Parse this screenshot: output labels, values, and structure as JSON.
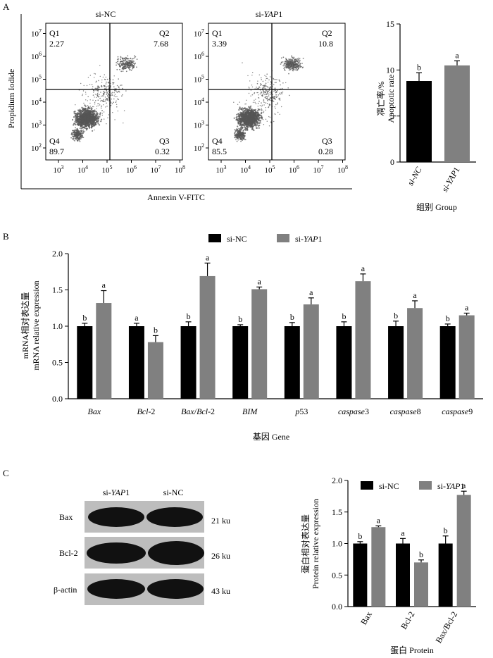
{
  "panel_labels": {
    "a": "A",
    "b": "B",
    "c": "C"
  },
  "colors": {
    "black_bar": "#000000",
    "gray_bar": "#808080",
    "scatter_dot": "#555555",
    "blot_bg": "#bdbdbd",
    "band": "#111111"
  },
  "flow": {
    "axis_x_label": "Annexin V-FITC",
    "axis_y_label": "Propidium Iodide",
    "x_ticks": [
      [
        "10",
        "3"
      ],
      [
        "10",
        "4"
      ],
      [
        "10",
        "5"
      ],
      [
        "10",
        "6"
      ],
      [
        "10",
        "7"
      ],
      [
        "10",
        "8"
      ]
    ],
    "y_ticks": [
      [
        "10",
        "2"
      ],
      [
        "10",
        "3"
      ],
      [
        "10",
        "4"
      ],
      [
        "10",
        "5"
      ],
      [
        "10",
        "6"
      ],
      [
        "10",
        "7"
      ]
    ],
    "plots": [
      {
        "title": "si-NC",
        "q1": "Q1",
        "q1_val": "2.27",
        "q2": "Q2",
        "q2_val": "7.68",
        "q3": "Q3",
        "q3_val": "0.32",
        "q4": "Q4",
        "q4_val": "89.7"
      },
      {
        "title_prefix": "si-",
        "title_italic": "YAP",
        "title_suffix": "1",
        "q1": "Q1",
        "q1_val": "3.39",
        "q2": "Q2",
        "q2_val": "10.8",
        "q3": "Q3",
        "q3_val": "0.28",
        "q4": "Q4",
        "q4_val": "85.5"
      }
    ]
  },
  "chart_data": [
    {
      "type": "bar",
      "panel": "A",
      "title": "",
      "ylabel_cn": "凋亡率/%",
      "ylabel_en": "Apoptotic rate",
      "xlabel": "组别  Group",
      "ylim": [
        0,
        15
      ],
      "yticks": [
        "0",
        "5",
        "10",
        "15"
      ],
      "categories": [
        "si-NC",
        "si-YAP1"
      ],
      "values": [
        8.8,
        10.5
      ],
      "errors": [
        0.9,
        0.5
      ],
      "letters": [
        "b",
        "a"
      ]
    },
    {
      "type": "bar",
      "panel": "B",
      "title": "",
      "ylabel_cn": "mRNA相对表达量",
      "ylabel_en": "mRNA relative expression",
      "xlabel": "基因  Gene",
      "ylim": [
        0,
        2.0
      ],
      "yticks": [
        "0.0",
        "0.5",
        "1.0",
        "1.5",
        "2.0"
      ],
      "categories": [
        "Bax",
        "Bcl-2",
        "Bax/Bcl-2",
        "BIM",
        "p53",
        "caspase3",
        "caspase8",
        "caspase9"
      ],
      "legend": {
        "nc": "si-NC",
        "yap_prefix": "si-",
        "yap_italic": "YAP",
        "yap_suffix": "1"
      },
      "series": [
        {
          "name": "si-NC",
          "values": [
            1.0,
            1.0,
            1.0,
            1.0,
            1.0,
            1.0,
            1.0,
            1.0
          ],
          "errors": [
            0.04,
            0.04,
            0.06,
            0.02,
            0.05,
            0.06,
            0.07,
            0.03
          ],
          "letters": [
            "b",
            "a",
            "b",
            "b",
            "b",
            "b",
            "b",
            "b"
          ]
        },
        {
          "name": "si-YAP1",
          "values": [
            1.32,
            0.78,
            1.69,
            1.51,
            1.3,
            1.62,
            1.25,
            1.15
          ],
          "errors": [
            0.17,
            0.09,
            0.18,
            0.03,
            0.09,
            0.1,
            0.1,
            0.03
          ],
          "letters": [
            "a",
            "b",
            "a",
            "a",
            "a",
            "a",
            "a",
            "a"
          ]
        }
      ]
    },
    {
      "type": "bar",
      "panel": "C",
      "title": "",
      "ylabel_cn": "蛋白相对表达量",
      "ylabel_en": "Protein relative expression",
      "xlabel": "蛋白  Protein",
      "ylim": [
        0,
        2.0
      ],
      "yticks": [
        "0.0",
        "0.5",
        "1.0",
        "1.5",
        "2.0"
      ],
      "categories": [
        "Bax",
        "Bcl-2",
        "Bax/Bcl-2"
      ],
      "legend": {
        "nc": "si-NC",
        "yap_prefix": "si-",
        "yap_italic": "YAP",
        "yap_suffix": "1"
      },
      "series": [
        {
          "name": "si-NC",
          "values": [
            1.0,
            1.0,
            1.0
          ],
          "errors": [
            0.03,
            0.08,
            0.12
          ],
          "letters": [
            "b",
            "a",
            "b"
          ]
        },
        {
          "name": "si-YAP1",
          "values": [
            1.26,
            0.7,
            1.77
          ],
          "errors": [
            0.02,
            0.04,
            0.06
          ],
          "letters": [
            "a",
            "b",
            "a"
          ]
        }
      ]
    }
  ],
  "western": {
    "lane1_prefix": "si-",
    "lane1_italic": "YAP",
    "lane1_suffix": "1",
    "lane2": "si-NC",
    "rows": [
      {
        "label": "Bax",
        "size": "21 ku"
      },
      {
        "label": "Bcl-2",
        "size": "26 ku"
      },
      {
        "label": "β-actin",
        "size": "43 ku"
      }
    ]
  }
}
